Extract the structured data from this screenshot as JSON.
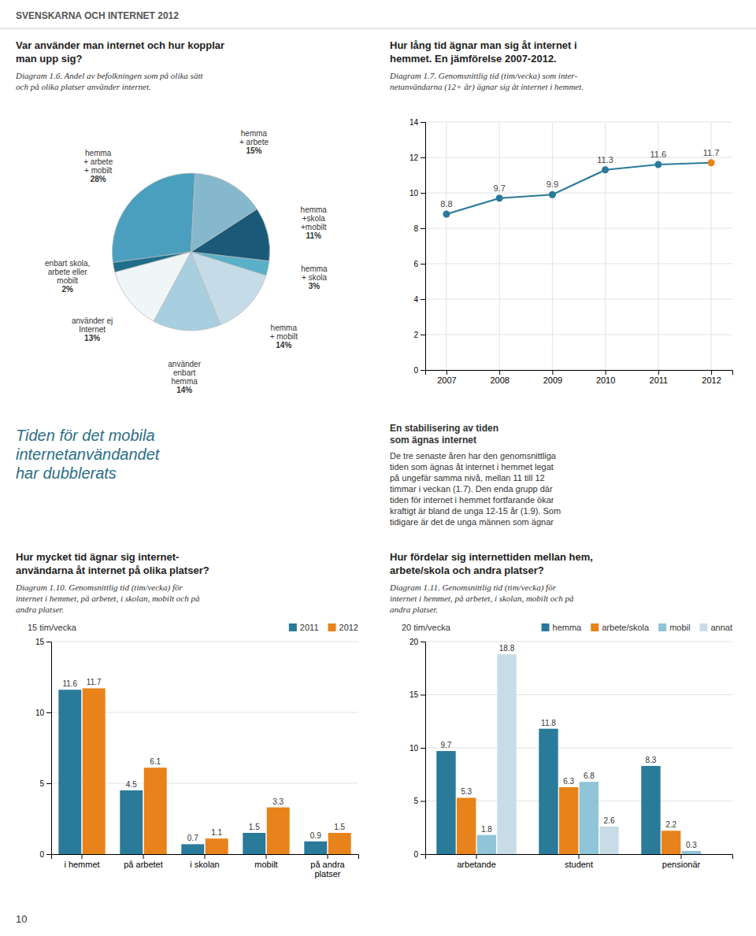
{
  "title": "SVENSKARNA OCH INTERNET 2012",
  "annotations": [
    "Tiden för det mobila\ninternetanvändandet\nhar dubblerats",
    "En stabilisering av tiden\nsom ägnas internet",
    "De tre senaste åren har den genomsnittliga\ntiden som ägnas åt internet i hemmet legat\npå ungefär samma nivå, mellan 11 till 12\ntimmar i veckan (1.7). Den enda grupp där\ntiden för internet i hemmet fortfarande ökar\nkraftigt är bland de unga 12-15 år (1.9). Som\ntidigare är det de unga männen som ägnar",
    "10"
  ],
  "chart_data": [
    {
      "type": "pie",
      "title": "Var använder man internet och hur kopplar\nman upp sig?",
      "subtitle": "Diagram 1.6. Andel av befolkningen som på olika sätt\noch på olika platser använder internet.",
      "categories": [
        "hemma\n+ arbete\n+ mobilt",
        "enbart skola,\narbete eller\nmobilt",
        "använder ej\nInternet",
        "använder\nenbart\nhemma",
        "hemma\n+ mobilt",
        "hemma\n+ skola",
        "hemma\n+skola\n+mobilt",
        "hemma\n+ arbete"
      ],
      "values": [
        28,
        2,
        13,
        14,
        14,
        3,
        11,
        15
      ],
      "value_labels": [
        "28%",
        "2%",
        "13%",
        "14%",
        "14%",
        "3%",
        "11%",
        "15%"
      ],
      "colors": [
        "#4a9fbe",
        "#1e6e8a",
        "#f0f5f8",
        "#a8cfe0",
        "#c5dce8",
        "#5ab0c8",
        "#1a5a78",
        "#85b8cc"
      ],
      "data_labels": true
    },
    {
      "type": "line",
      "title": "Hur lång tid ägnar man sig åt internet i\nhemmet. En jämförelse 2007-2012.",
      "subtitle": "Diagram 1.7. Genomsnittlig tid (tim/vecka) som inter-\nnetanvändarna (12+ år) ägnar sig åt internet i hemmet.",
      "categories": [
        "2007",
        "2008",
        "2009",
        "2010",
        "2011",
        "2012"
      ],
      "values": [
        8.8,
        9.7,
        9.9,
        11.3,
        11.6,
        11.7
      ],
      "color": "#2a7a9a",
      "colors": [
        "#2a7a9a",
        "#2a7a9a",
        "#2a7a9a",
        "#2a7a9a",
        "#2a7a9a",
        "#e8821a"
      ],
      "marker": "circle",
      "ylim": [
        0,
        14
      ],
      "yticks": [
        0,
        2,
        4,
        6,
        8,
        10,
        12,
        14
      ],
      "grid": true,
      "data_labels": true
    },
    {
      "type": "bar",
      "title": "Hur mycket tid ägnar sig internet-\nanvändarna åt internet på olika platser?",
      "subtitle": "Diagram 1.10. Genomsnittlig tid (tim/vecka) för\ninternet i hemmet, på arbetet, i skolan, mobilt och på\nandra platser.",
      "annotations": [
        "15 tim/vecka"
      ],
      "categories": [
        "i hemmet",
        "på arbetet",
        "i skolan",
        "mobilt",
        "på andra\nplatser"
      ],
      "series": [
        {
          "name": "2011",
          "color": "#2a7a9a",
          "values": [
            11.6,
            4.5,
            0.7,
            1.5,
            0.9
          ]
        },
        {
          "name": "2012",
          "color": "#e8821a",
          "values": [
            11.7,
            6.1,
            1.1,
            3.3,
            1.5
          ]
        }
      ],
      "ylim": [
        0,
        15
      ],
      "yticks": [
        0,
        5,
        10,
        15
      ],
      "grid": true,
      "legend": "upper right",
      "data_labels": true
    },
    {
      "type": "bar",
      "title": "Hur fördelar sig internettiden mellan hem,\narbete/skola och andra platser?",
      "subtitle": "Diagram 1.11. Genomsnittlig tid (tim/vecka) för\ninternet i hemmet, på arbetet, i skolan, mobilt och på\nandra platser.",
      "annotations": [
        "20 tim/vecka"
      ],
      "categories": [
        "arbetande",
        "student",
        "pensionär"
      ],
      "series": [
        {
          "name": "hemma",
          "color": "#2a7a9a",
          "values": [
            9.7,
            11.8,
            8.3
          ]
        },
        {
          "name": "arbete/skola",
          "color": "#e8821a",
          "values": [
            5.3,
            6.3,
            2.2
          ]
        },
        {
          "name": "mobil",
          "color": "#90c4d8",
          "values": [
            1.8,
            6.8,
            0.3
          ]
        },
        {
          "name": "annat",
          "color": "#c8dce8",
          "values": [
            18.8,
            2.6,
            0
          ],
          "value_labels": [
            "18.8",
            "2.6",
            null
          ]
        }
      ],
      "ylim": [
        0,
        20
      ],
      "yticks": [
        0,
        5,
        10,
        15,
        20
      ],
      "grid": true,
      "legend": "upper right",
      "data_labels": true
    }
  ]
}
